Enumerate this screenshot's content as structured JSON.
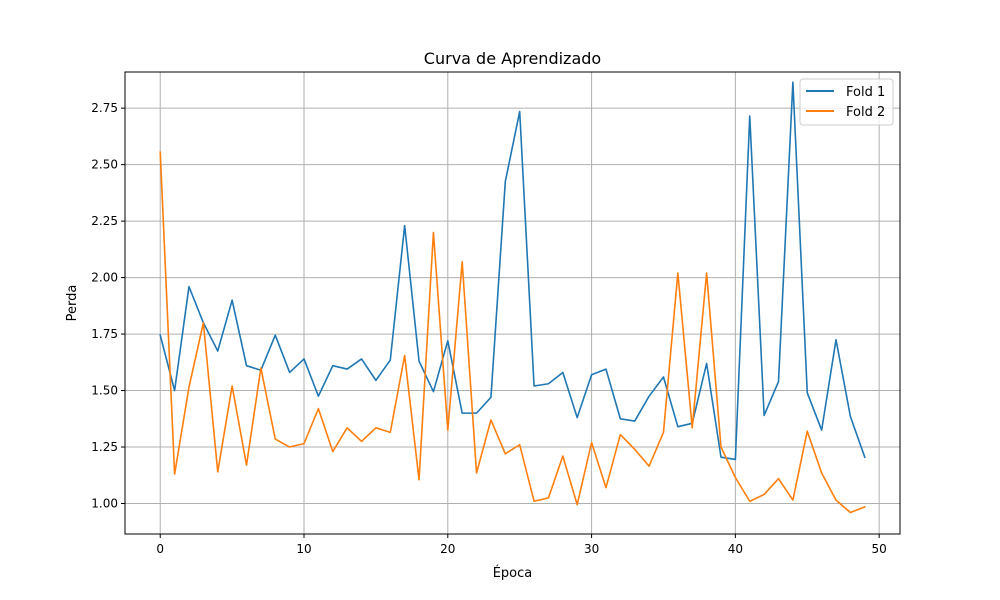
{
  "chart_data": {
    "type": "line",
    "title": "Curva de Aprendizado",
    "xlabel": "Época",
    "ylabel": "Perda",
    "xlim": [
      -2.45,
      51.45
    ],
    "ylim": [
      0.865,
      2.91
    ],
    "xticks": [
      0,
      10,
      20,
      30,
      40,
      50
    ],
    "yticks": [
      1.0,
      1.25,
      1.5,
      1.75,
      2.0,
      2.25,
      2.5,
      2.75
    ],
    "grid": true,
    "legend_position": "top-right",
    "x": [
      0,
      1,
      2,
      3,
      4,
      5,
      6,
      7,
      8,
      9,
      10,
      11,
      12,
      13,
      14,
      15,
      16,
      17,
      18,
      19,
      20,
      21,
      22,
      23,
      24,
      25,
      26,
      27,
      28,
      29,
      30,
      31,
      32,
      33,
      34,
      35,
      36,
      37,
      38,
      39,
      40,
      41,
      42,
      43,
      44,
      45,
      46,
      47,
      48,
      49
    ],
    "series": [
      {
        "name": "Fold 1",
        "color": "#1f77b4",
        "values": [
          1.745,
          1.5,
          1.96,
          1.8,
          1.675,
          1.9,
          1.61,
          1.59,
          1.745,
          1.58,
          1.64,
          1.475,
          1.61,
          1.595,
          1.64,
          1.545,
          1.635,
          2.23,
          1.63,
          1.495,
          1.72,
          1.4,
          1.4,
          1.47,
          2.425,
          2.735,
          1.52,
          1.53,
          1.58,
          1.38,
          1.57,
          1.595,
          1.375,
          1.365,
          1.475,
          1.56,
          1.34,
          1.355,
          1.62,
          1.205,
          1.195,
          2.715,
          1.39,
          1.54,
          2.865,
          1.49,
          1.325,
          1.725,
          1.385,
          1.205
        ]
      },
      {
        "name": "Fold 2",
        "color": "#ff7f0e",
        "values": [
          2.555,
          1.13,
          1.515,
          1.8,
          1.14,
          1.52,
          1.17,
          1.6,
          1.285,
          1.25,
          1.265,
          1.42,
          1.23,
          1.335,
          1.275,
          1.335,
          1.315,
          1.655,
          1.105,
          2.2,
          1.325,
          2.07,
          1.135,
          1.37,
          1.22,
          1.26,
          1.01,
          1.025,
          1.21,
          0.995,
          1.27,
          1.07,
          1.305,
          1.24,
          1.165,
          1.315,
          2.02,
          1.335,
          2.02,
          1.25,
          1.115,
          1.01,
          1.04,
          1.11,
          1.015,
          1.32,
          1.135,
          1.015,
          0.96,
          0.985
        ]
      }
    ]
  }
}
